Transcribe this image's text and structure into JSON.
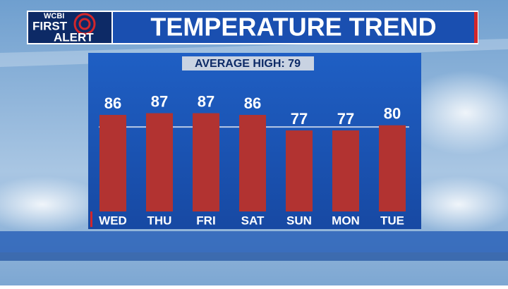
{
  "chart_data": {
    "type": "bar",
    "title": "TEMPERATURE TREND",
    "logo": [
      "WCBI",
      "FIRST",
      "ALERT"
    ],
    "categories": [
      "WED",
      "THU",
      "FRI",
      "SAT",
      "SUN",
      "MON",
      "TUE"
    ],
    "values": [
      86,
      87,
      87,
      86,
      77,
      77,
      80
    ],
    "color": "#b23331",
    "average": 79,
    "average_label": "AVERAGE HIGH: 79",
    "ylim": [
      30,
      95
    ]
  }
}
